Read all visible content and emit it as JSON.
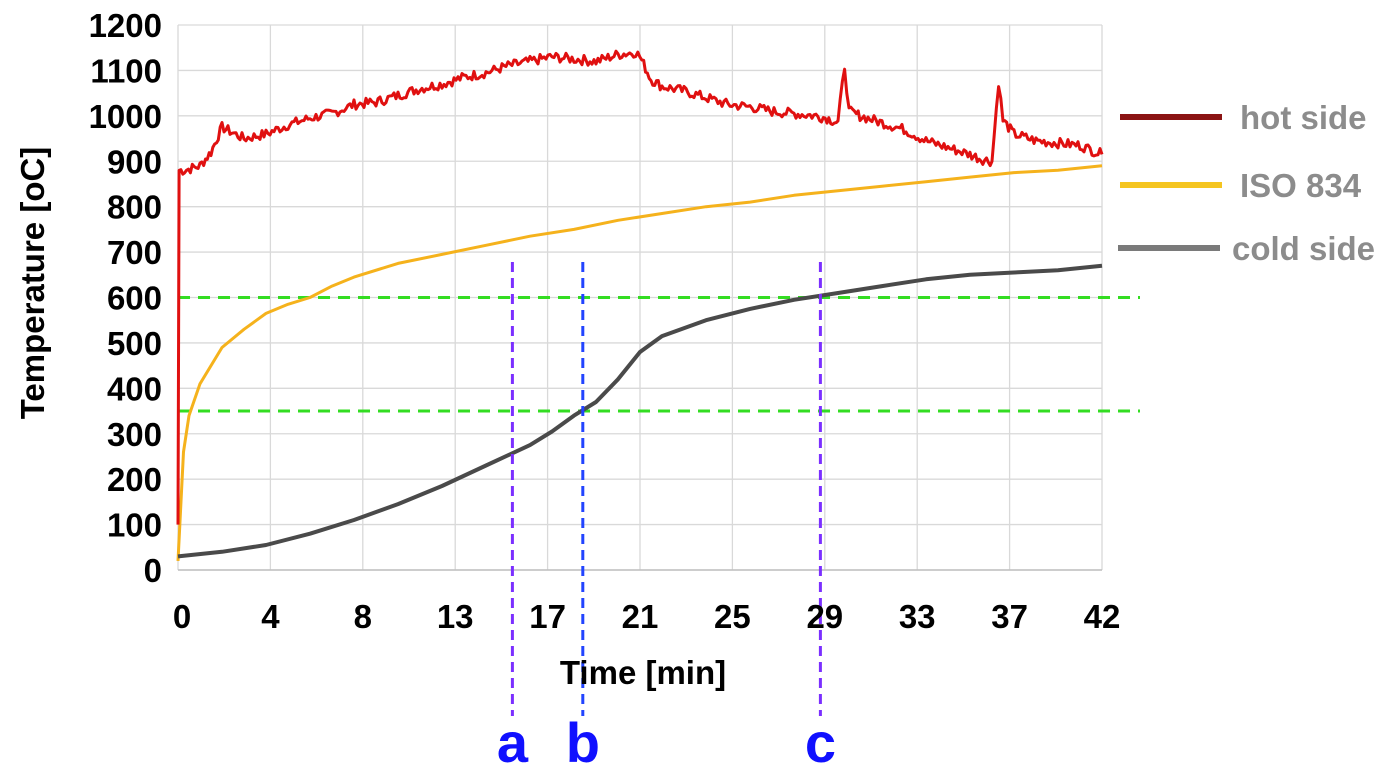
{
  "chart_data": {
    "type": "line",
    "title": "",
    "xlabel": "Time [min]",
    "ylabel": "Temperature [oC]",
    "xlim": [
      0,
      42
    ],
    "ylim": [
      0,
      1200
    ],
    "x_ticks": [
      "0",
      "4",
      "8",
      "13",
      "17",
      "21",
      "25",
      "29",
      "33",
      "37",
      "42"
    ],
    "y_ticks": [
      "0",
      "100",
      "200",
      "300",
      "400",
      "500",
      "600",
      "700",
      "800",
      "900",
      "1000",
      "1100",
      "1200"
    ],
    "grid": true,
    "legend_position": "right",
    "series": [
      {
        "name": "hot side",
        "color": "#e01010",
        "legend_color": "#8b1414",
        "x": [
          0,
          0.05,
          0.3,
          1,
          1.5,
          2,
          3,
          4,
          5,
          6,
          7,
          8,
          9,
          10,
          11,
          12,
          13,
          14,
          15,
          16,
          17,
          18,
          19,
          20,
          20.8,
          21,
          21.5,
          22,
          23,
          24,
          25,
          26,
          27,
          28,
          29,
          29.5,
          30,
          30.3,
          30.5,
          31,
          32,
          33,
          34,
          35,
          36,
          36.5,
          37,
          37.3,
          37.5,
          38,
          39,
          40,
          41,
          42
        ],
        "y": [
          100,
          880,
          880,
          890,
          920,
          975,
          950,
          960,
          980,
          995,
          1005,
          1025,
          1030,
          1045,
          1060,
          1070,
          1085,
          1095,
          1110,
          1120,
          1130,
          1125,
          1120,
          1135,
          1140,
          1130,
          1080,
          1065,
          1055,
          1040,
          1025,
          1020,
          1010,
          1005,
          1000,
          995,
          985,
          1110,
          1010,
          1000,
          985,
          970,
          945,
          930,
          915,
          905,
          900,
          1075,
          990,
          960,
          945,
          940,
          935,
          915
        ]
      },
      {
        "name": "ISO 834",
        "color": "#f5b21c",
        "legend_color": "#f5c520",
        "x": [
          0,
          0.25,
          0.5,
          1,
          2,
          3,
          4,
          5,
          6,
          7,
          8,
          10,
          12,
          14,
          16,
          18,
          20,
          22,
          24,
          26,
          28,
          30,
          32,
          34,
          36,
          38,
          40,
          42
        ],
        "y": [
          20,
          260,
          340,
          410,
          490,
          530,
          565,
          585,
          600,
          625,
          645,
          675,
          695,
          715,
          735,
          750,
          770,
          785,
          800,
          810,
          825,
          835,
          845,
          855,
          865,
          875,
          880,
          890
        ]
      },
      {
        "name": "cold side",
        "color": "#4a4a4a",
        "legend_color": "#7a7a7a",
        "x": [
          0,
          2,
          4,
          6,
          8,
          10,
          12,
          14,
          16,
          17,
          18,
          19,
          20,
          21,
          22,
          24,
          26,
          28,
          30,
          32,
          34,
          36,
          38,
          40,
          42
        ],
        "y": [
          30,
          40,
          55,
          80,
          110,
          145,
          185,
          230,
          275,
          305,
          340,
          370,
          420,
          480,
          515,
          550,
          575,
          595,
          610,
          625,
          640,
          650,
          655,
          660,
          670
        ]
      }
    ],
    "reference_lines": [
      {
        "axis": "y",
        "value": 600,
        "color": "#33dd22",
        "style": "dashed"
      },
      {
        "axis": "y",
        "value": 350,
        "color": "#33dd22",
        "style": "dashed"
      }
    ],
    "markers": [
      {
        "label": "a",
        "x": 15.2,
        "color": "#7b2fff",
        "label_color": "#1010ff"
      },
      {
        "label": "b",
        "x": 18.4,
        "color": "#2244ff",
        "label_color": "#1010ff"
      },
      {
        "label": "c",
        "x": 29.2,
        "color": "#7b2fff",
        "label_color": "#1010ff"
      }
    ]
  }
}
